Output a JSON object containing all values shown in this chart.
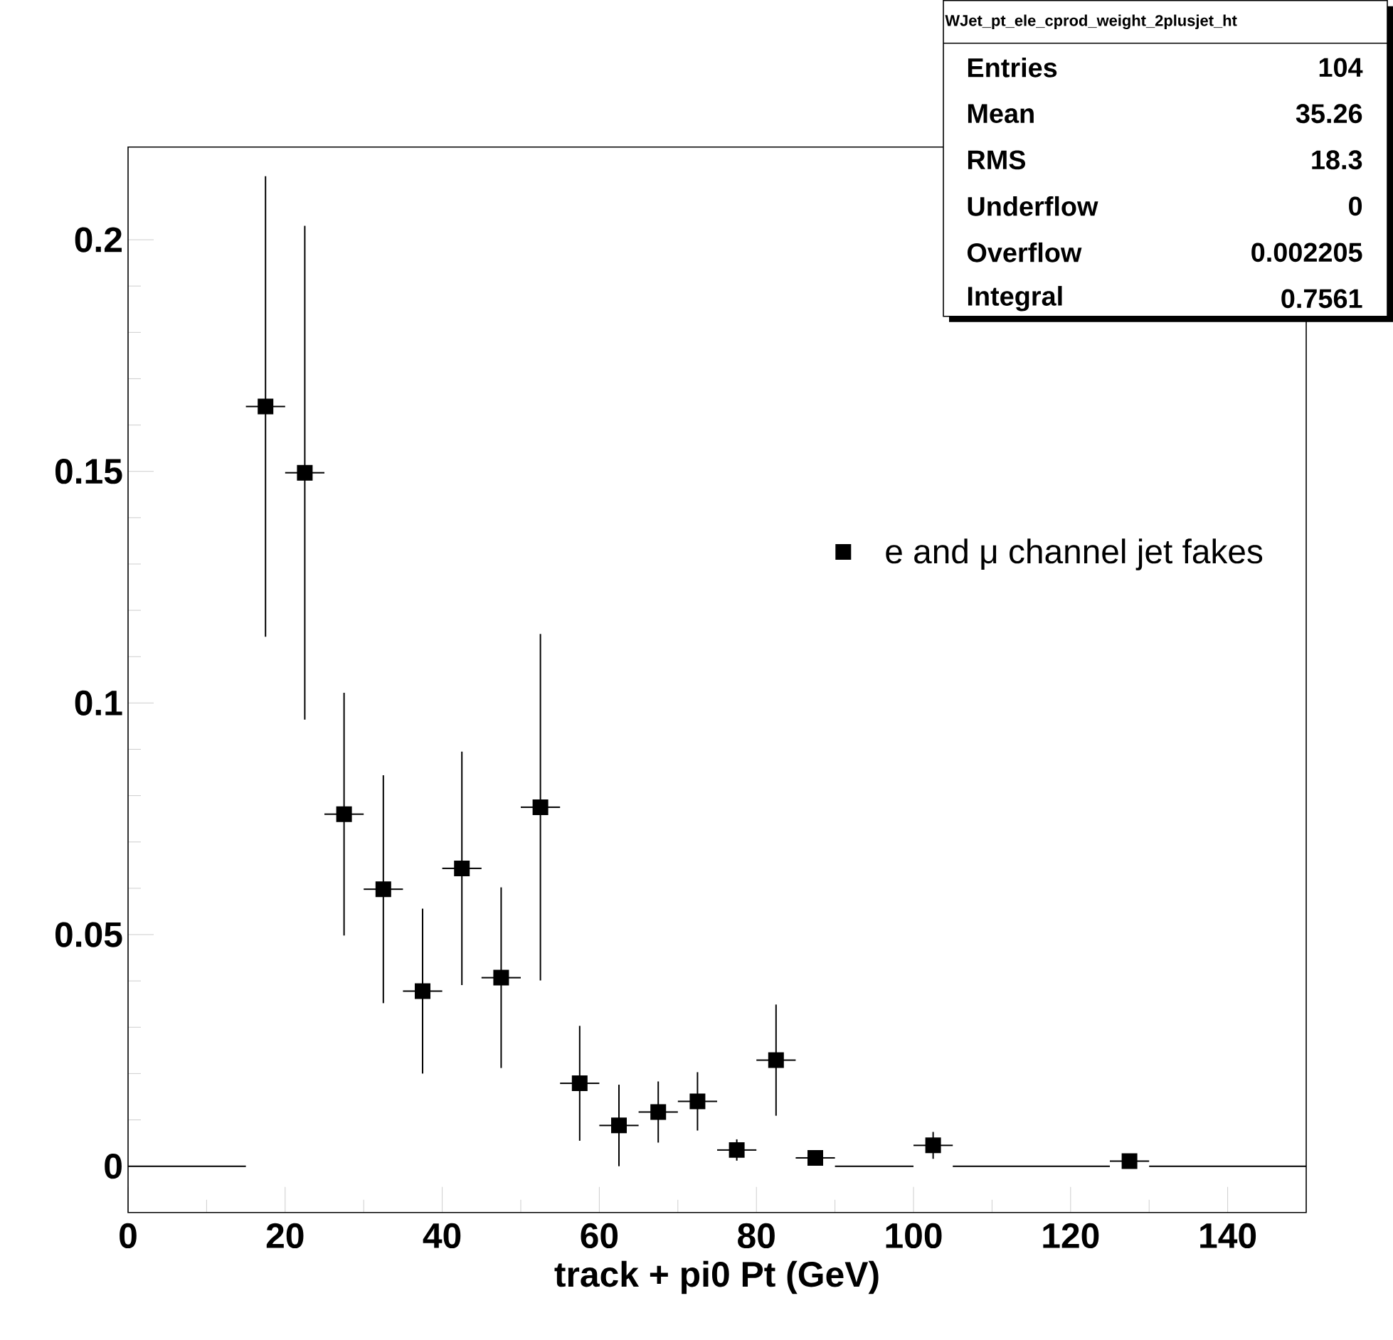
{
  "chart_data": {
    "type": "scatter",
    "xlabel": "track + pi0 Pt (GeV)",
    "xlim": [
      0,
      150
    ],
    "ylim": [
      -0.01,
      0.22
    ],
    "xticks": [
      0,
      20,
      40,
      60,
      80,
      100,
      120,
      140
    ],
    "yticks": [
      0,
      0.05,
      0.1,
      0.15,
      0.2
    ],
    "legend": "right",
    "marker": "square",
    "grid": false,
    "annotations": [
      "WJet_pt_ele_cprod_weight_2plusjet_ht",
      "Entries",
      "104",
      "Mean",
      "35.26",
      "RMS",
      "18.3",
      "Underflow",
      "0",
      "Overflow",
      "0.002205",
      "Integral",
      "0.7561"
    ],
    "series": [
      {
        "name": "e and μ channel jet fakes",
        "color": "#000000",
        "x": [
          17.5,
          22.5,
          27.5,
          32.5,
          37.5,
          42.5,
          47.5,
          52.5,
          57.5,
          62.5,
          67.5,
          72.5,
          77.5,
          82.5,
          87.5,
          102.5,
          127.5
        ],
        "values": [
          0.164,
          0.1497,
          0.076,
          0.0598,
          0.0378,
          0.0643,
          0.0407,
          0.0775,
          0.0179,
          0.0088,
          0.0117,
          0.014,
          0.0035,
          0.0229,
          0.0018,
          0.0045,
          0.0011
        ],
        "errors": [
          0.0497,
          0.0533,
          0.0262,
          0.0246,
          0.0178,
          0.0252,
          0.0195,
          0.0374,
          0.0124,
          0.0088,
          0.0066,
          0.0063,
          0.0023,
          0.012,
          0.0006,
          0.0029,
          0.0005
        ],
        "xerrors": [
          2.5,
          2.5,
          2.5,
          2.5,
          2.5,
          2.5,
          2.5,
          2.5,
          2.5,
          2.5,
          2.5,
          2.5,
          2.5,
          2.5,
          2.5,
          2.5,
          2.5
        ]
      },
      {
        "type": "line",
        "color": "#000000",
        "line_style": "solid",
        "marker": "none",
        "x": [
          0,
          15
        ],
        "values": [
          0,
          0
        ]
      },
      {
        "type": "line",
        "color": "#000000",
        "line_style": "solid",
        "marker": "none",
        "x": [
          90,
          100
        ],
        "values": [
          0,
          0
        ]
      },
      {
        "type": "line",
        "color": "#000000",
        "line_style": "solid",
        "marker": "none",
        "x": [
          105,
          125
        ],
        "values": [
          0,
          0
        ]
      },
      {
        "type": "line",
        "color": "#000000",
        "line_style": "solid",
        "marker": "none",
        "x": [
          130,
          150
        ],
        "values": [
          0,
          0
        ]
      }
    ]
  }
}
